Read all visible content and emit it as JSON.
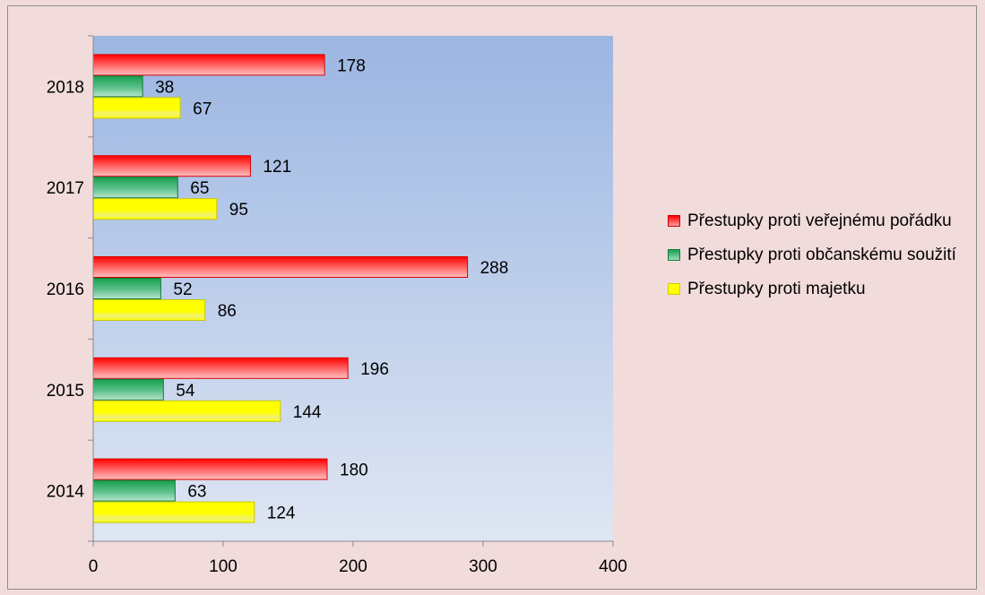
{
  "chart_data": {
    "type": "bar",
    "orientation": "horizontal",
    "categories": [
      "2014",
      "2015",
      "2016",
      "2017",
      "2018"
    ],
    "series": [
      {
        "name": "Přestupky proti veřejnému pořádku",
        "values": [
          180,
          196,
          288,
          121,
          178
        ],
        "color": "#ff1a1a"
      },
      {
        "name": "Přestupky proti občanskému soužití",
        "values": [
          63,
          54,
          52,
          65,
          38
        ],
        "color": "#1f9e5a"
      },
      {
        "name": "Přestupky proti majetku",
        "values": [
          124,
          144,
          86,
          95,
          67
        ],
        "color": "#ffff00"
      }
    ],
    "xlim": [
      0,
      400
    ],
    "xticks": [
      "0",
      "100",
      "200",
      "300",
      "400"
    ],
    "title": "",
    "xlabel": "",
    "ylabel": "",
    "grid": false,
    "legend_position": "right",
    "plot_background": "#9bb6e2",
    "page_background": "#f2dcdb"
  }
}
